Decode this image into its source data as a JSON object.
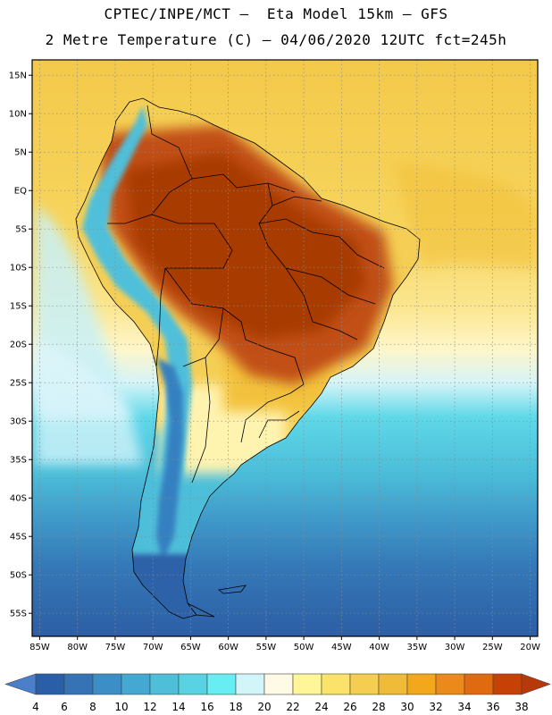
{
  "header": {
    "line1": "CPTEC/INPE/MCT –  Eta Model 15km – GFS",
    "line2": "2 Metre Temperature (C) – 04/06/2020 12UTC fct=245h"
  },
  "map": {
    "lon_range": [
      -86,
      -19
    ],
    "lat_range": [
      -58,
      17
    ],
    "lat_labels": [
      "15N",
      "10N",
      "5N",
      "EQ",
      "5S",
      "10S",
      "15S",
      "20S",
      "25S",
      "30S",
      "35S",
      "40S",
      "45S",
      "50S",
      "55S"
    ],
    "lat_values": [
      15,
      10,
      5,
      0,
      -5,
      -10,
      -15,
      -20,
      -25,
      -30,
      -35,
      -40,
      -45,
      -50,
      -55
    ],
    "lon_labels": [
      "85W",
      "80W",
      "75W",
      "70W",
      "65W",
      "60W",
      "55W",
      "50W",
      "45W",
      "40W",
      "35W",
      "30W",
      "25W",
      "20W"
    ],
    "lon_values": [
      -85,
      -80,
      -75,
      -70,
      -65,
      -60,
      -55,
      -50,
      -45,
      -40,
      -35,
      -30,
      -25,
      -20
    ]
  },
  "colorbar": {
    "labels": [
      "4",
      "6",
      "8",
      "10",
      "12",
      "14",
      "16",
      "18",
      "20",
      "22",
      "24",
      "26",
      "28",
      "30",
      "32",
      "34",
      "36",
      "38"
    ],
    "colors": [
      "#2a5ea6",
      "#3573b5",
      "#3d8ec6",
      "#45a8d2",
      "#4ebed9",
      "#59d3e3",
      "#66eef2",
      "#d2f5fa",
      "#fffae6",
      "#fff69a",
      "#fbe36b",
      "#f5cd50",
      "#f0bb39",
      "#f3a81c",
      "#eb8a1a",
      "#e06a10",
      "#c64105"
    ],
    "low_color": "#4a7fcc",
    "high_color": "#b8380a"
  },
  "colors": {
    "ocean_north": "#f5cf4e",
    "ocean_south": "#2f67ab",
    "hot_land": "#a83a05",
    "andes": "#66eef2"
  }
}
